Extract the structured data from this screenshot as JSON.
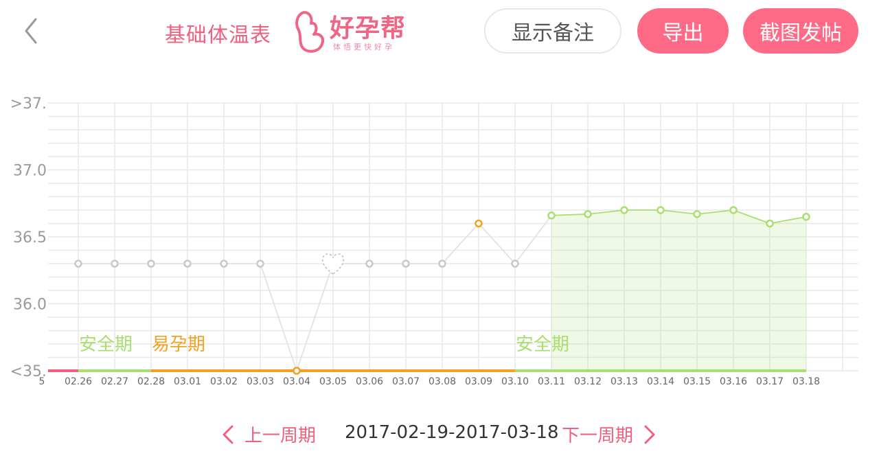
{
  "header": {
    "title": "基础体温表",
    "logo_name": "好孕帮",
    "logo_tagline": "体悟更快好孕",
    "show_notes_label": "显示备注",
    "export_label": "导出",
    "screenshot_post_label": "截图发帖"
  },
  "footer": {
    "prev_label": "上一周期",
    "date_range": "2017-02-19-2017-03-18",
    "next_label": "下一周期"
  },
  "colors": {
    "brand": "#ff6b86",
    "safe": "#a8e070",
    "fertile": "#f5a020",
    "period": "#f0607e",
    "gray_point": "#c8c8c8",
    "grid": "#e8e8e8"
  },
  "chart_data": {
    "type": "line",
    "y_tick_labels": [
      ">37.",
      "37.0",
      "36.5",
      "36.0",
      "<35."
    ],
    "ylim": [
      35.5,
      37.5
    ],
    "x_tick_labels": [
      "5",
      "02.26",
      "02.27",
      "02.28",
      "03.01",
      "03.02",
      "03.03",
      "03.04",
      "03.05",
      "03.06",
      "03.07",
      "03.08",
      "03.09",
      "03.10",
      "03.11",
      "03.12",
      "03.13",
      "03.14",
      "03.15",
      "03.16",
      "03.17",
      "03.18"
    ],
    "points": [
      {
        "x": "02.26",
        "y": 36.3,
        "kind": "gray"
      },
      {
        "x": "02.27",
        "y": 36.3,
        "kind": "gray"
      },
      {
        "x": "02.28",
        "y": 36.3,
        "kind": "gray"
      },
      {
        "x": "03.01",
        "y": 36.3,
        "kind": "gray"
      },
      {
        "x": "03.02",
        "y": 36.3,
        "kind": "gray"
      },
      {
        "x": "03.03",
        "y": 36.3,
        "kind": "gray"
      },
      {
        "x": "03.04",
        "y": 35.5,
        "kind": "fertile"
      },
      {
        "x": "03.05",
        "y": 36.3,
        "kind": "heart"
      },
      {
        "x": "03.06",
        "y": 36.3,
        "kind": "gray"
      },
      {
        "x": "03.07",
        "y": 36.3,
        "kind": "gray"
      },
      {
        "x": "03.08",
        "y": 36.3,
        "kind": "gray"
      },
      {
        "x": "03.09",
        "y": 36.6,
        "kind": "fertile"
      },
      {
        "x": "03.10",
        "y": 36.3,
        "kind": "gray"
      },
      {
        "x": "03.11",
        "y": 36.66,
        "kind": "safe"
      },
      {
        "x": "03.12",
        "y": 36.67,
        "kind": "safe"
      },
      {
        "x": "03.13",
        "y": 36.7,
        "kind": "safe"
      },
      {
        "x": "03.14",
        "y": 36.7,
        "kind": "safe"
      },
      {
        "x": "03.15",
        "y": 36.67,
        "kind": "safe"
      },
      {
        "x": "03.16",
        "y": 36.7,
        "kind": "safe"
      },
      {
        "x": "03.17",
        "y": 36.6,
        "kind": "safe"
      },
      {
        "x": "03.18",
        "y": 36.65,
        "kind": "safe"
      }
    ],
    "phases": [
      {
        "label": "",
        "kind": "period",
        "from": "5",
        "to": "02.26"
      },
      {
        "label": "安全期",
        "kind": "safe",
        "from": "02.26",
        "to": "02.28"
      },
      {
        "label": "易孕期",
        "kind": "fertile",
        "from": "02.28",
        "to": "03.10"
      },
      {
        "label": "安全期",
        "kind": "safe",
        "from": "03.10",
        "to": "03.18"
      }
    ],
    "grid": true
  }
}
